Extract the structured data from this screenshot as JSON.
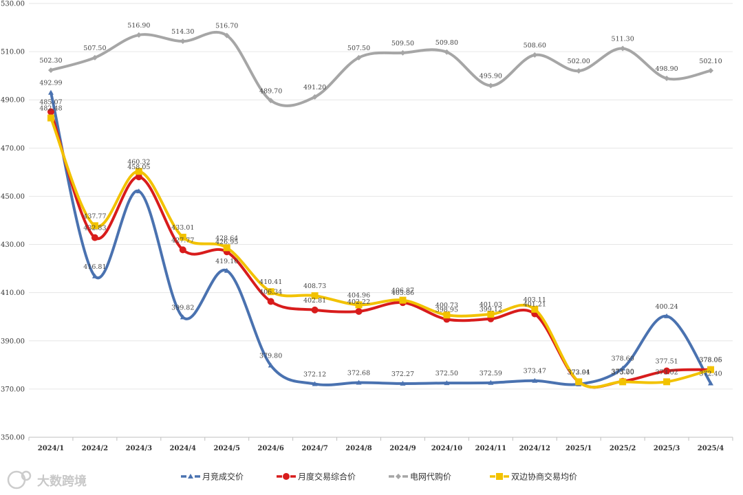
{
  "chart_data": {
    "type": "line",
    "title": "",
    "xlabel": "",
    "ylabel": "",
    "ylim": [
      350,
      530
    ],
    "yticks": [
      350,
      370,
      390,
      410,
      430,
      450,
      470,
      490,
      510,
      530
    ],
    "ytick_labels": [
      "350.00",
      "370.00",
      "390.00",
      "410.00",
      "430.00",
      "450.00",
      "470.00",
      "490.00",
      "510.00",
      "530.00"
    ],
    "grid": "horizontal",
    "legend_position": "bottom",
    "categories": [
      "2024/1",
      "2024/2",
      "2024/3",
      "2024/4",
      "2024/5",
      "2024/6",
      "2024/7",
      "2024/8",
      "2024/9",
      "2024/10",
      "2024/11",
      "2024/12",
      "2025/1",
      "2025/2",
      "2025/3",
      "2025/4"
    ],
    "series": [
      {
        "name": "月竞成交价",
        "color": "#4a72b0",
        "marker": "triangle",
        "values": [
          492.99,
          416.81,
          452.1,
          399.82,
          419.1,
          379.8,
          372.12,
          372.68,
          372.27,
          372.5,
          372.59,
          373.47,
          372.01,
          378.6,
          400.24,
          372.4
        ],
        "labels": [
          "492.99",
          "416.81",
          "",
          "399.82",
          "419.10",
          "379.80",
          "372.12",
          "372.68",
          "372.27",
          "372.50",
          "372.59",
          "373.47",
          "",
          "378.60",
          "400.24",
          "372.40"
        ]
      },
      {
        "name": "月度交易综合价",
        "color": "#d81c1c",
        "marker": "circle",
        "values": [
          485.07,
          432.83,
          458.05,
          427.77,
          426.95,
          406.34,
          402.81,
          402.22,
          405.86,
          398.95,
          399.12,
          401.21,
          372.94,
          373.2,
          377.51,
          378.05
        ],
        "labels": [
          "485.07",
          "432.83",
          "458.05",
          "427.77",
          "426.95",
          "406.34",
          "402.81",
          "402.22",
          "405.86",
          "398.95",
          "399.12",
          "401.21",
          "372.94",
          "373.20",
          "377.51",
          "378.05"
        ]
      },
      {
        "name": "电网代购价",
        "color": "#a6a6a6",
        "marker": "diamond",
        "values": [
          502.3,
          507.5,
          516.9,
          514.3,
          516.7,
          489.7,
          491.2,
          507.5,
          509.5,
          509.8,
          495.9,
          508.6,
          502.0,
          511.3,
          498.9,
          502.1
        ],
        "labels": [
          "502.30",
          "507.50",
          "516.90",
          "514.30",
          "516.70",
          "489.70",
          "491.20",
          "507.50",
          "509.50",
          "509.80",
          "495.90",
          "508.60",
          "502.00",
          "511.30",
          "498.90",
          "502.10"
        ]
      },
      {
        "name": "双边协商交易均价",
        "color": "#f2c200",
        "marker": "square",
        "values": [
          482.48,
          437.77,
          460.32,
          433.01,
          428.64,
          410.41,
          408.73,
          404.96,
          406.87,
          400.73,
          401.03,
          403.11,
          373.01,
          373.0,
          373.02,
          378.06
        ],
        "labels": [
          "482.48",
          "437.77",
          "460.32",
          "433.01",
          "428.64",
          "410.41",
          "408.73",
          "404.96",
          "406.87",
          "400.73",
          "401.03",
          "403.11",
          "373.01",
          "373.00",
          "373.02",
          "378.06"
        ]
      }
    ]
  },
  "watermark": {
    "text": "大数跨境"
  }
}
